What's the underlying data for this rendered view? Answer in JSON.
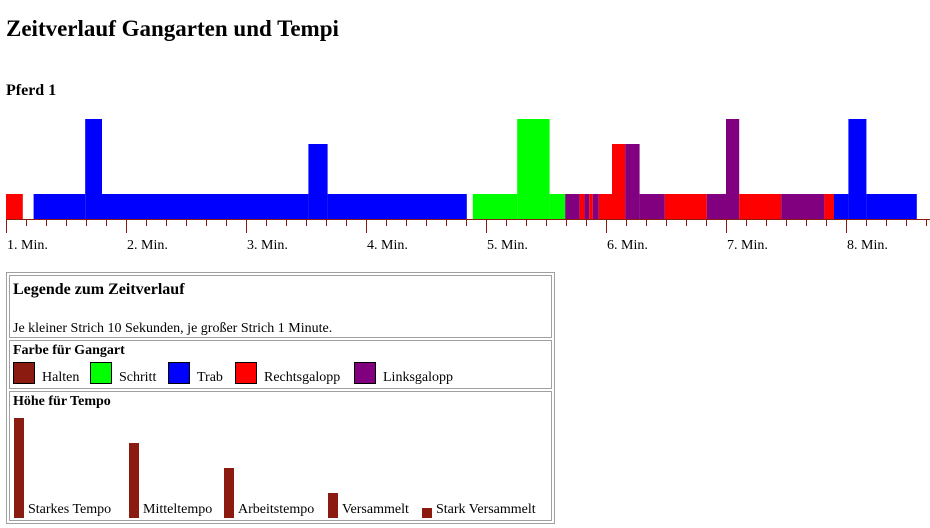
{
  "page": {
    "title": "Zeitverlauf Gangarten und Tempi",
    "horse": "Pferd 1"
  },
  "colors": {
    "halten": "#8b1a10",
    "schritt": "#00ff00",
    "trab": "#0000ff",
    "rechtsgalopp": "#ff0000",
    "linksgalopp": "#800080",
    "axis": "#8b1a10"
  },
  "chart_data": {
    "type": "bar",
    "x_unit": "Minuten",
    "xlim": [
      0,
      8.5
    ],
    "ticks": [
      "1. Min.",
      "2. Min.",
      "3. Min.",
      "4. Min.",
      "5. Min.",
      "6. Min.",
      "7. Min.",
      "8. Min."
    ],
    "tempo_levels": {
      "versammelt": 1,
      "arbeitstempo": 2,
      "mitteltempo": 3,
      "starkes_tempo": 4
    },
    "segments": [
      {
        "start": 0.0,
        "end": 0.14,
        "gait": "rechtsgalopp",
        "tempo": 1
      },
      {
        "start": 0.23,
        "end": 0.66,
        "gait": "trab",
        "tempo": 1
      },
      {
        "start": 0.66,
        "end": 0.8,
        "gait": "trab",
        "tempo": 4
      },
      {
        "start": 0.8,
        "end": 2.52,
        "gait": "trab",
        "tempo": 1
      },
      {
        "start": 2.52,
        "end": 2.68,
        "gait": "trab",
        "tempo": 3
      },
      {
        "start": 2.68,
        "end": 3.84,
        "gait": "trab",
        "tempo": 1
      },
      {
        "start": 3.89,
        "end": 4.26,
        "gait": "schritt",
        "tempo": 1
      },
      {
        "start": 4.26,
        "end": 4.53,
        "gait": "schritt",
        "tempo": 4
      },
      {
        "start": 4.53,
        "end": 4.66,
        "gait": "schritt",
        "tempo": 1
      },
      {
        "start": 4.66,
        "end": 4.78,
        "gait": "linksgalopp",
        "tempo": 1
      },
      {
        "start": 4.78,
        "end": 4.82,
        "gait": "rechtsgalopp",
        "tempo": 1
      },
      {
        "start": 4.82,
        "end": 4.86,
        "gait": "linksgalopp",
        "tempo": 1
      },
      {
        "start": 4.86,
        "end": 4.89,
        "gait": "rechtsgalopp",
        "tempo": 1
      },
      {
        "start": 4.89,
        "end": 4.94,
        "gait": "linksgalopp",
        "tempo": 1
      },
      {
        "start": 4.94,
        "end": 5.05,
        "gait": "rechtsgalopp",
        "tempo": 1
      },
      {
        "start": 5.05,
        "end": 5.16,
        "gait": "rechtsgalopp",
        "tempo": 3
      },
      {
        "start": 5.16,
        "end": 5.28,
        "gait": "linksgalopp",
        "tempo": 3
      },
      {
        "start": 5.28,
        "end": 5.49,
        "gait": "linksgalopp",
        "tempo": 1
      },
      {
        "start": 5.49,
        "end": 5.84,
        "gait": "rechtsgalopp",
        "tempo": 1
      },
      {
        "start": 5.84,
        "end": 6.0,
        "gait": "linksgalopp",
        "tempo": 1
      },
      {
        "start": 6.0,
        "end": 6.11,
        "gait": "linksgalopp",
        "tempo": 4
      },
      {
        "start": 6.11,
        "end": 6.46,
        "gait": "rechtsgalopp",
        "tempo": 1
      },
      {
        "start": 6.46,
        "end": 6.82,
        "gait": "linksgalopp",
        "tempo": 1
      },
      {
        "start": 6.82,
        "end": 6.9,
        "gait": "rechtsgalopp",
        "tempo": 1
      },
      {
        "start": 6.9,
        "end": 7.02,
        "gait": "trab",
        "tempo": 1
      },
      {
        "start": 7.02,
        "end": 7.17,
        "gait": "trab",
        "tempo": 4
      },
      {
        "start": 7.17,
        "end": 7.59,
        "gait": "trab",
        "tempo": 1
      }
    ]
  },
  "legend": {
    "title": "Legende zum Zeitverlauf",
    "note": "Je kleiner Strich 10 Sekunden, je großer Strich 1 Minute.",
    "gait_heading": "Farbe für Gangart",
    "gaits": [
      {
        "key": "halten",
        "label": "Halten"
      },
      {
        "key": "schritt",
        "label": "Schritt"
      },
      {
        "key": "trab",
        "label": "Trab"
      },
      {
        "key": "rechtsgalopp",
        "label": "Rechtsgalopp"
      },
      {
        "key": "linksgalopp",
        "label": "Linksgalopp"
      }
    ],
    "tempo_heading": "Höhe für Tempo",
    "tempos": [
      {
        "label": "Starkes Tempo",
        "level": 4
      },
      {
        "label": "Mitteltempo",
        "level": 3
      },
      {
        "label": "Arbeitstempo",
        "level": 2
      },
      {
        "label": "Versammelt",
        "level": 1
      },
      {
        "label": "Stark Versammelt",
        "level": 0.4
      }
    ]
  }
}
